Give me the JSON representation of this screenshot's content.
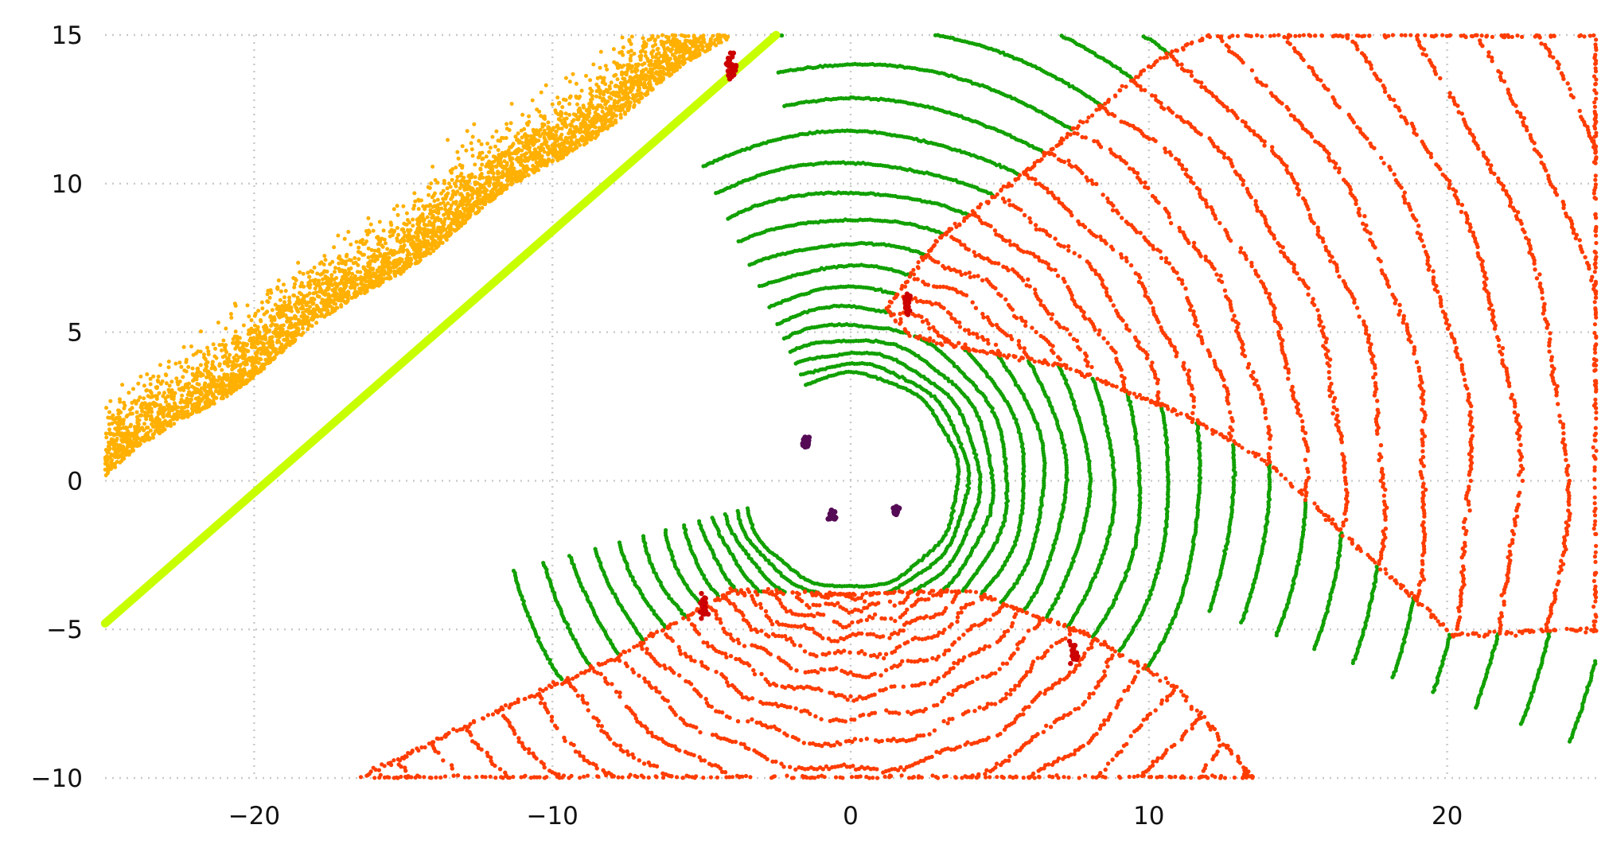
{
  "chart_data": {
    "type": "scatter",
    "title": "",
    "xlabel": "",
    "ylabel": "",
    "xlim": [
      -25,
      25
    ],
    "ylim": [
      -10,
      15
    ],
    "xticks": [
      -20,
      -10,
      0,
      10,
      20
    ],
    "yticks": [
      -10,
      -5,
      0,
      5,
      10,
      15
    ],
    "xtick_labels": [
      "−20",
      "−10",
      "0",
      "10",
      "20"
    ],
    "ytick_labels": [
      "−10",
      "−5",
      "0",
      "5",
      "10",
      "15"
    ],
    "grid": true,
    "legend": "none",
    "point_classes": [
      {
        "color": "#11a000",
        "description": "concentric ring scan points",
        "rings": {
          "r_min": 3.6,
          "r_max": 34.0,
          "spacing_start": 0.32,
          "spacing_growth": 0.065
        },
        "wedges": [
          {
            "center": [
              0,
              0
            ],
            "theta_deg": [
              -20,
              100
            ],
            "r": [
              12.2,
              35.0
            ]
          },
          {
            "center": [
              0,
              0
            ],
            "theta_deg": [
              -165,
              115
            ],
            "r": [
              3.5,
              12.2
            ]
          }
        ]
      },
      {
        "color": "#ff3c00",
        "description": "cone scan region upper right",
        "region_polygon": [
          [
            1.2,
            5.8
          ],
          [
            3.0,
            8.2
          ],
          [
            6.0,
            10.5
          ],
          [
            10.0,
            14.0
          ],
          [
            12.0,
            15.0
          ],
          [
            25.0,
            15.0
          ],
          [
            25.0,
            -5.0
          ],
          [
            20.2,
            -5.2
          ],
          [
            17.0,
            -2.2
          ],
          [
            14.0,
            0.6
          ],
          [
            11.0,
            2.3
          ],
          [
            7.0,
            3.9
          ],
          [
            4.0,
            4.4
          ],
          [
            2.0,
            4.9
          ]
        ]
      },
      {
        "color": "#ff3c00",
        "description": "cone scan region bottom",
        "region_polygon": [
          [
            -16.5,
            -10.0
          ],
          [
            -12.0,
            -7.8
          ],
          [
            -8.0,
            -6.0
          ],
          [
            -4.0,
            -3.7
          ],
          [
            0.0,
            -3.8
          ],
          [
            4.0,
            -3.7
          ],
          [
            8.0,
            -5.2
          ],
          [
            11.0,
            -7.0
          ],
          [
            13.5,
            -10.0
          ]
        ]
      },
      {
        "color": "#ffb000",
        "description": "scattered band beyond the boundary line",
        "band": {
          "from": [
            -25.0,
            0.0
          ],
          "to": [
            -4.0,
            14.8
          ],
          "width": 3.0
        }
      },
      {
        "color": "#c8ff00",
        "description": "straight boundary line",
        "line": {
          "from": [
            -25.0,
            -4.8
          ],
          "to": [
            -2.5,
            15.0
          ]
        }
      },
      {
        "color": "#550a55",
        "description": "small clusters near origin",
        "clusters": [
          [
            -1.5,
            1.3
          ],
          [
            -0.6,
            -1.2
          ],
          [
            1.5,
            -1.0
          ]
        ]
      },
      {
        "color": "#cc0000",
        "description": "small dark red clusters",
        "clusters": [
          [
            1.9,
            6.0
          ],
          [
            -4.9,
            -4.2
          ],
          [
            7.5,
            -5.8
          ],
          [
            -4.0,
            13.9
          ]
        ]
      }
    ]
  }
}
